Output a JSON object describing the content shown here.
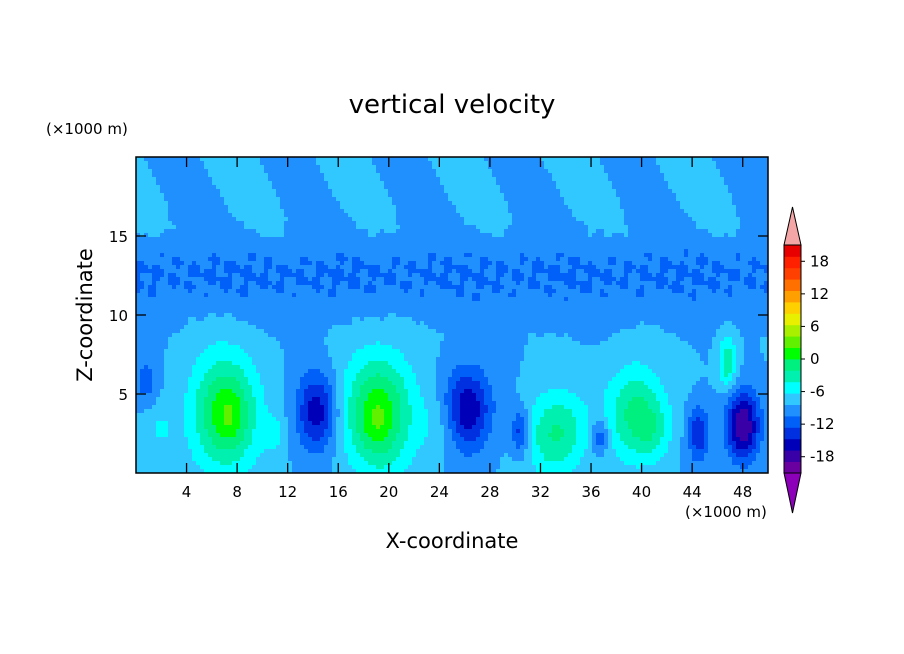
{
  "chart_data": {
    "type": "heatmap",
    "title": "vertical velocity",
    "xlabel": "X-coordinate",
    "ylabel": "Z-coordinate",
    "x_unit": "(×1000 m)",
    "y_unit": "(×1000 m)",
    "xlim": [
      0,
      50
    ],
    "ylim": [
      0,
      20
    ],
    "x_ticks": [
      4,
      8,
      12,
      16,
      20,
      24,
      28,
      32,
      36,
      40,
      44,
      48
    ],
    "x_tick_labels": [
      "4",
      "8",
      "12",
      "16",
      "20",
      "24",
      "28",
      "32",
      "36",
      "40",
      "44",
      "48"
    ],
    "y_ticks": [
      5,
      10,
      15
    ],
    "y_tick_labels": [
      "5",
      "10",
      "15"
    ],
    "colorbar": {
      "range": [
        -21,
        21
      ],
      "step": 3,
      "labels": [
        "18",
        "12",
        "6",
        "0",
        "-6",
        "-12",
        "-18"
      ],
      "label_values": [
        18,
        12,
        6,
        0,
        -6,
        -12,
        -18
      ],
      "extend": "both"
    },
    "features": [
      {
        "x": 7.0,
        "z": 3.8,
        "w": 13,
        "sx": 1.9,
        "sz": 2.6
      },
      {
        "x": 7.5,
        "z": 3.5,
        "w": 3,
        "sx": 0.8,
        "sz": 1.2
      },
      {
        "x": 11.0,
        "z": 2.5,
        "w": 4,
        "sx": 0.6,
        "sz": 0.8
      },
      {
        "x": 14.3,
        "z": 3.9,
        "w": -11,
        "sx": 1.1,
        "sz": 1.7
      },
      {
        "x": 19.2,
        "z": 3.8,
        "w": 14,
        "sx": 1.9,
        "sz": 2.6
      },
      {
        "x": 19.0,
        "z": 3.2,
        "w": 2,
        "sx": 0.7,
        "sz": 1.0
      },
      {
        "x": 24.0,
        "z": 3.0,
        "w": 3,
        "sx": 1.2,
        "sz": 1.5
      },
      {
        "x": 26.2,
        "z": 4.0,
        "w": -12,
        "sx": 1.3,
        "sz": 1.8
      },
      {
        "x": 30.4,
        "z": 2.6,
        "w": -8,
        "sx": 0.5,
        "sz": 1.0
      },
      {
        "x": 33.0,
        "z": 2.4,
        "w": 9,
        "sx": 1.5,
        "sz": 1.9
      },
      {
        "x": 35.0,
        "z": 3.0,
        "w": 2,
        "sx": 1.2,
        "sz": 1.6
      },
      {
        "x": 36.7,
        "z": 2.3,
        "w": -7,
        "sx": 0.5,
        "sz": 0.8
      },
      {
        "x": 39.5,
        "z": 3.8,
        "w": 10,
        "sx": 1.6,
        "sz": 2.1
      },
      {
        "x": 41.0,
        "z": 2.6,
        "w": 4,
        "sx": 1.0,
        "sz": 1.2
      },
      {
        "x": 44.5,
        "z": 2.5,
        "w": -9,
        "sx": 0.6,
        "sz": 1.2
      },
      {
        "x": 46.8,
        "z": 7.0,
        "w": 9,
        "sx": 0.5,
        "sz": 1.1
      },
      {
        "x": 48.0,
        "z": 3.0,
        "w": -15,
        "sx": 0.9,
        "sz": 1.5
      },
      {
        "x": 0.8,
        "z": 5.8,
        "w": -5,
        "sx": 0.6,
        "sz": 0.9
      },
      {
        "x": 2.0,
        "z": 2.8,
        "w": 3,
        "sx": 0.8,
        "sz": 1.0
      }
    ],
    "colors": {
      "lower_extend": "#8b00b8",
      "upper_extend": "#f4a6a6",
      "scale": [
        "#6b00a0",
        "#3a00a8",
        "#0000b8",
        "#0030e0",
        "#0060f8",
        "#2090ff",
        "#30c8ff",
        "#00ffff",
        "#00f0b0",
        "#00f080",
        "#00ff00",
        "#60f000",
        "#a8f000",
        "#e8f000",
        "#ffd000",
        "#ffa000",
        "#ff7000",
        "#ff4000",
        "#ff2000",
        "#e80000"
      ]
    }
  }
}
